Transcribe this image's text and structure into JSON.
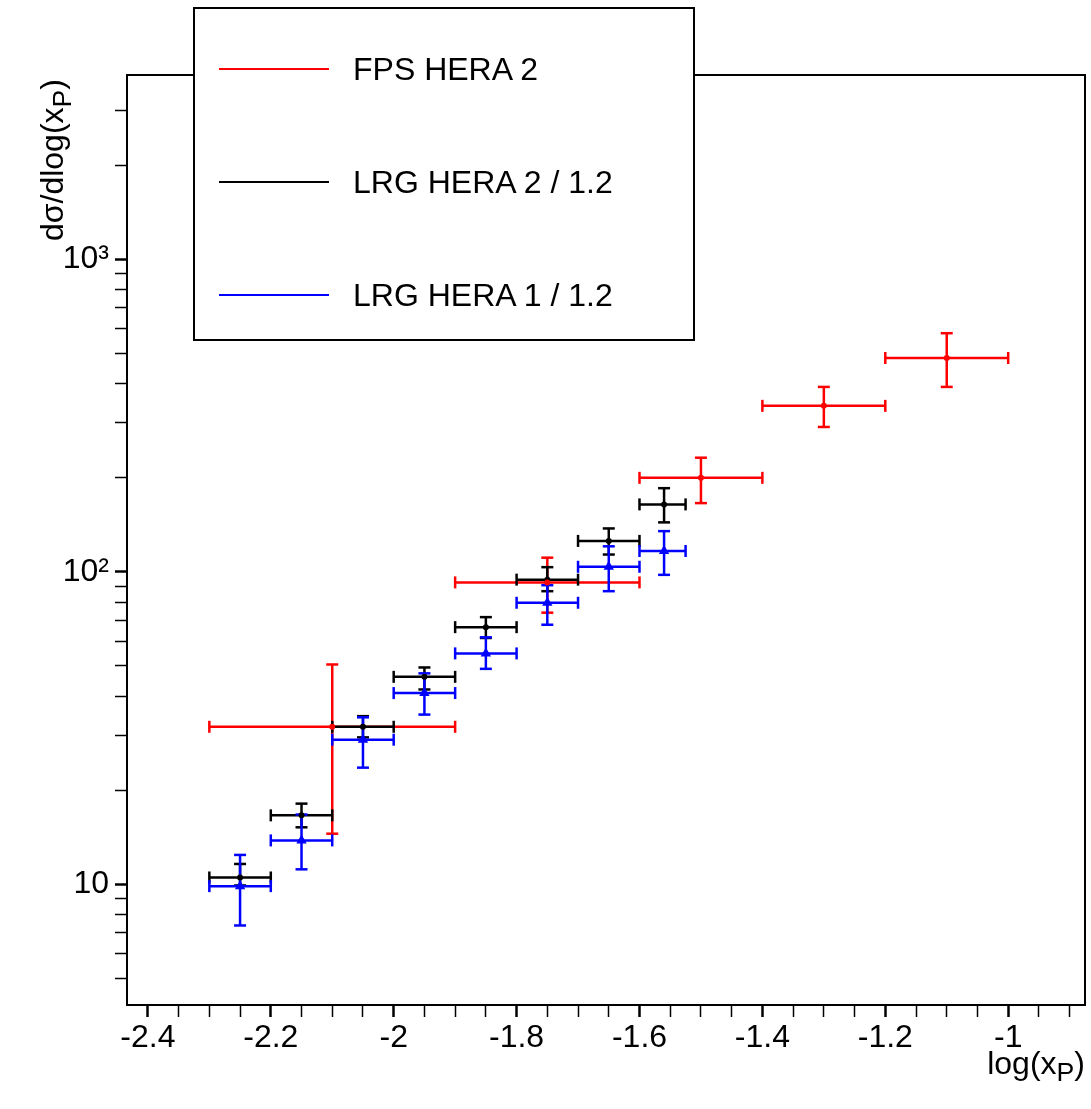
{
  "chart_data": {
    "type": "scatter",
    "xlabel": "log(x$_{P}$)",
    "ylabel": "dσ/dlog(x$_{P}$)",
    "log": "y",
    "xlim": [
      -2.434,
      -0.875
    ],
    "ylim": [
      4.1,
      3900
    ],
    "xticks": [
      -2.4,
      {
        "value": -2.35,
        "label": null
      },
      {
        "value": -2.3,
        "label": null
      },
      {
        "value": -2.25,
        "label": null
      },
      -2.2,
      {
        "value": -2.15,
        "label": null
      },
      {
        "value": -2.1,
        "label": null
      },
      {
        "value": -2.05,
        "label": null
      },
      -2,
      {
        "value": -1.95,
        "label": null
      },
      {
        "value": -1.9,
        "label": null
      },
      {
        "value": -1.85,
        "label": null
      },
      -1.8,
      {
        "value": -1.75,
        "label": null
      },
      {
        "value": -1.7,
        "label": null
      },
      {
        "value": -1.65,
        "label": null
      },
      -1.6,
      {
        "value": -1.55,
        "label": null
      },
      {
        "value": -1.5,
        "label": null
      },
      {
        "value": -1.45,
        "label": null
      },
      -1.4,
      {
        "value": -1.35,
        "label": null
      },
      {
        "value": -1.3,
        "label": null
      },
      {
        "value": -1.25,
        "label": null
      },
      -1.2,
      {
        "value": -1.15,
        "label": null
      },
      {
        "value": -1.1,
        "label": null
      },
      {
        "value": -1.05,
        "label": null
      },
      -1,
      {
        "value": -0.95,
        "label": null
      },
      {
        "value": -0.9,
        "label": null
      }
    ],
    "yticks": [
      {
        "value": 5,
        "label": null
      },
      {
        "value": 6,
        "label": null
      },
      {
        "value": 7,
        "label": null
      },
      {
        "value": 8,
        "label": null
      },
      {
        "value": 9,
        "label": null
      },
      10,
      {
        "value": 20,
        "label": null
      },
      {
        "value": 30,
        "label": null
      },
      {
        "value": 40,
        "label": null
      },
      {
        "value": 50,
        "label": null
      },
      {
        "value": 60,
        "label": null
      },
      {
        "value": 70,
        "label": null
      },
      {
        "value": 80,
        "label": null
      },
      {
        "value": 90,
        "label": null
      },
      {
        "value": 100,
        "label": "10²"
      },
      {
        "value": 200,
        "label": null
      },
      {
        "value": 300,
        "label": null
      },
      {
        "value": 400,
        "label": null
      },
      {
        "value": 500,
        "label": null
      },
      {
        "value": 600,
        "label": null
      },
      {
        "value": 700,
        "label": null
      },
      {
        "value": 800,
        "label": null
      },
      {
        "value": 900,
        "label": null
      },
      {
        "value": 1000,
        "label": "10³"
      },
      {
        "value": 2000,
        "label": null
      },
      {
        "value": 3000,
        "label": null
      }
    ],
    "grid": false,
    "legend": "top left",
    "series": [
      {
        "name": "FPS HERA 2",
        "color": "#ff0000",
        "marker": "circle",
        "x": [
          -2.1,
          -1.75,
          -1.5,
          -1.3,
          -1.1
        ],
        "values": [
          31.9,
          92.5,
          200,
          340,
          484
        ],
        "errors": [
          [
            14.5,
            50.5
          ],
          [
            74,
            111
          ],
          [
            166,
            232
          ],
          [
            291,
            391
          ],
          [
            391,
            581
          ]
        ],
        "xerrors": [
          [
            -2.3,
            -1.9
          ],
          [
            -1.9,
            -1.6
          ],
          [
            -1.6,
            -1.4
          ],
          [
            -1.4,
            -1.2
          ],
          [
            -1.2,
            -1.0
          ]
        ]
      },
      {
        "name": "LRG HERA 2 / 1.2",
        "color": "#000000",
        "marker": "circle",
        "x": [
          -2.25,
          -2.15,
          -2.05,
          -1.95,
          -1.85,
          -1.75,
          -1.65,
          -1.56
        ],
        "values": [
          10.5,
          16.6,
          31.9,
          46.1,
          66.5,
          94.4,
          125.6,
          164.4
        ],
        "errors": [
          [
            9.9,
            11.6
          ],
          [
            15.2,
            18.1
          ],
          [
            29.5,
            34.5
          ],
          [
            42,
            49.4
          ],
          [
            61.4,
            71.6
          ],
          [
            86.7,
            103.5
          ],
          [
            113.6,
            137.7
          ],
          [
            144,
            185.3
          ]
        ],
        "xerrors": [
          [
            -2.3,
            -2.2
          ],
          [
            -2.2,
            -2.1
          ],
          [
            -2.1,
            -2.0
          ],
          [
            -2.0,
            -1.9
          ],
          [
            -1.9,
            -1.8
          ],
          [
            -1.8,
            -1.7
          ],
          [
            -1.7,
            -1.6
          ],
          [
            -1.6,
            -1.525
          ]
        ]
      },
      {
        "name": "LRG HERA 1 / 1.2",
        "color": "#0000ff",
        "marker": "triangle",
        "x": [
          -2.25,
          -2.15,
          -2.05,
          -1.95,
          -1.85,
          -1.75,
          -1.65,
          -1.56
        ],
        "values": [
          9.85,
          13.8,
          29,
          40.9,
          54.8,
          79.6,
          103.8,
          116.6
        ],
        "errors": [
          [
            7.37,
            12.4
          ],
          [
            11.15,
            16.7
          ],
          [
            23.6,
            34.2
          ],
          [
            34.9,
            47.3
          ],
          [
            48.9,
            61.7
          ],
          [
            67.7,
            90.6
          ],
          [
            86.7,
            120.7
          ],
          [
            97.8,
            135
          ]
        ],
        "xerrors": [
          [
            -2.3,
            -2.2
          ],
          [
            -2.2,
            -2.1
          ],
          [
            -2.1,
            -2.0
          ],
          [
            -2.0,
            -1.9
          ],
          [
            -1.9,
            -1.8
          ],
          [
            -1.8,
            -1.7
          ],
          [
            -1.7,
            -1.6
          ],
          [
            -1.6,
            -1.525
          ]
        ]
      }
    ]
  }
}
